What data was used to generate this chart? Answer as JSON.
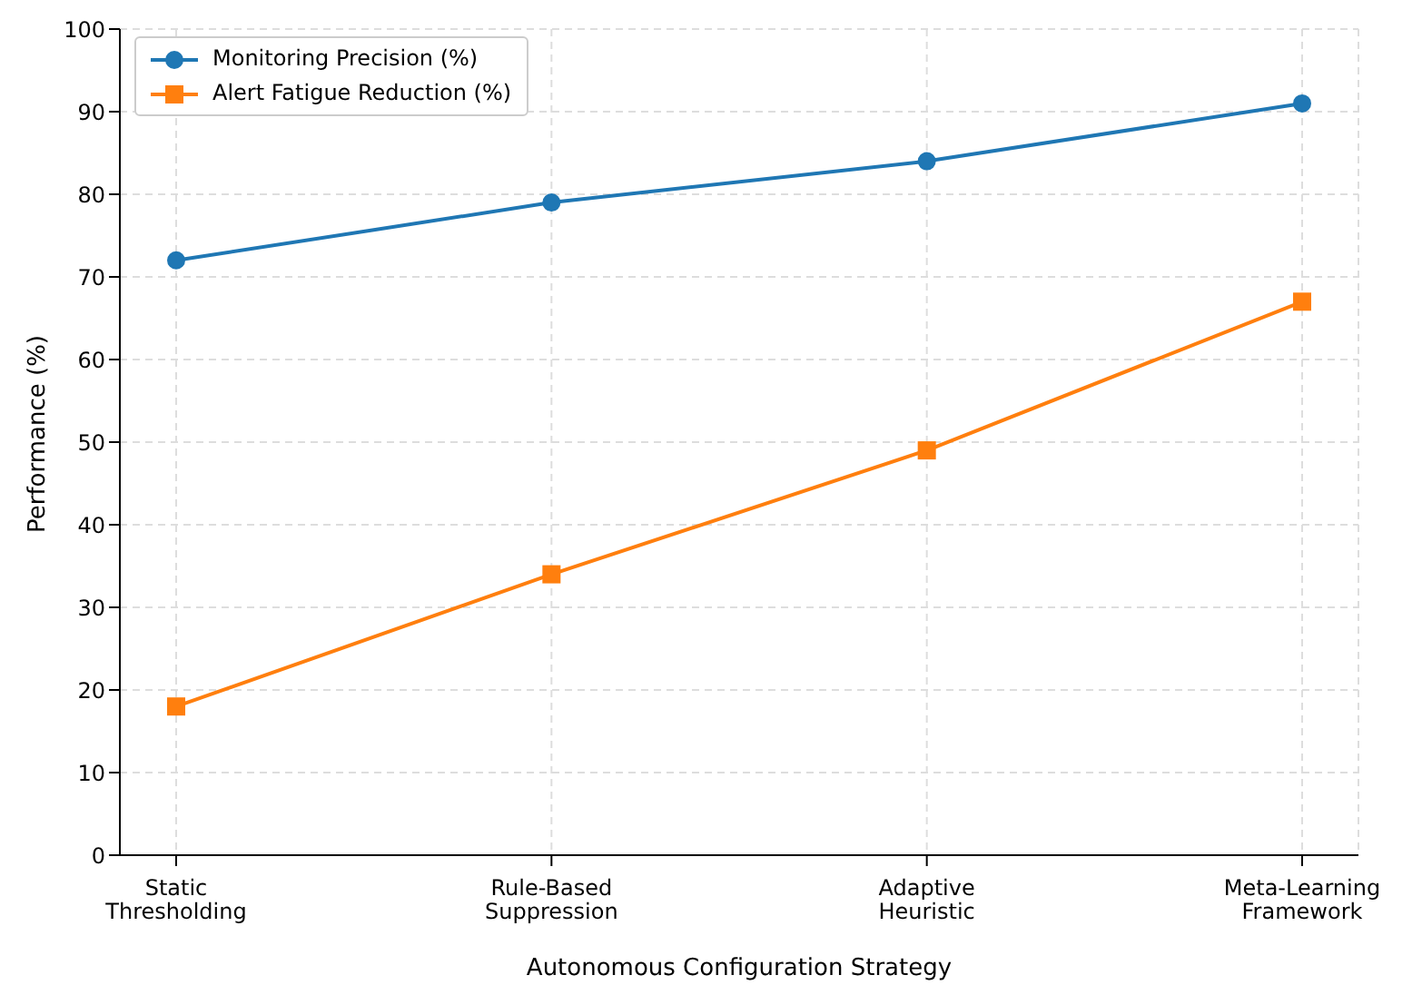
{
  "chart_data": {
    "type": "line",
    "xlabel": "Autonomous Configuration Strategy",
    "ylabel": "Performance (%)",
    "categories": [
      "Static\nThresholding",
      "Rule-Based\nSuppression",
      "Adaptive\nHeuristic",
      "Meta-Learning\nFramework"
    ],
    "series": [
      {
        "name": "Monitoring Precision (%)",
        "color": "#1f77b4",
        "marker": "circle",
        "values": [
          72,
          79,
          84,
          91
        ]
      },
      {
        "name": "Alert Fatigue Reduction (%)",
        "color": "#ff7f0e",
        "marker": "square",
        "values": [
          18,
          34,
          49,
          67
        ]
      }
    ],
    "ylim": [
      0,
      100
    ],
    "yticks": [
      0,
      10,
      20,
      30,
      40,
      50,
      60,
      70,
      80,
      90,
      100
    ],
    "grid": true,
    "legend": "top left",
    "line_style": "solid"
  }
}
